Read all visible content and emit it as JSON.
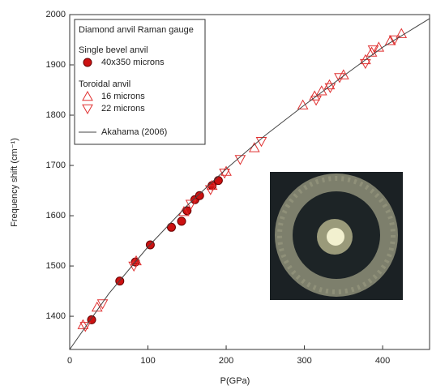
{
  "chart_data": {
    "type": "scatter",
    "x_label": "P(GPa)",
    "y_label": "Frequency shift  (cm⁻¹)",
    "xlim": [
      0,
      460
    ],
    "ylim": [
      1334,
      2000
    ],
    "xticks": [
      0,
      100,
      200,
      300,
      400
    ],
    "yticks": [
      1400,
      1500,
      1600,
      1700,
      1800,
      1900,
      2000
    ],
    "legend": {
      "title": "Diamond anvil Raman gauge",
      "sections": [
        "Single bevel anvil",
        "Toroidal anvil"
      ]
    },
    "series": [
      {
        "name": "40x350 microns",
        "marker": "circle",
        "color": "#cc1111",
        "x": [
          28,
          64,
          84,
          103,
          130,
          143,
          150,
          160,
          166,
          182,
          190
        ],
        "values": [
          1393,
          1470,
          1508,
          1542,
          1577,
          1589,
          1610,
          1632,
          1640,
          1660,
          1670
        ]
      },
      {
        "name": "16 microns",
        "marker": "triangle-up",
        "color": "#e03030",
        "x": [
          17,
          35,
          85,
          146,
          182,
          200,
          236,
          298,
          313,
          322,
          332,
          350,
          378,
          386,
          395,
          410,
          424
        ],
        "values": [
          1383,
          1418,
          1510,
          1608,
          1660,
          1688,
          1735,
          1820,
          1838,
          1848,
          1860,
          1880,
          1910,
          1925,
          1935,
          1948,
          1962
        ]
      },
      {
        "name": "22 microns",
        "marker": "triangle-down",
        "color": "#e03030",
        "x": [
          20,
          42,
          82,
          155,
          180,
          198,
          218,
          245,
          315,
          333,
          345,
          378,
          388,
          415
        ],
        "values": [
          1380,
          1425,
          1500,
          1623,
          1652,
          1685,
          1712,
          1748,
          1830,
          1855,
          1875,
          1903,
          1930,
          1950
        ]
      },
      {
        "name": "Akahama (2006)",
        "marker": "line",
        "color": "#444444",
        "x": [
          0,
          50,
          100,
          150,
          200,
          250,
          300,
          350,
          400,
          460
        ],
        "values": [
          1334,
          1445,
          1538,
          1620,
          1693,
          1760,
          1820,
          1878,
          1935,
          1992
        ]
      }
    ]
  }
}
